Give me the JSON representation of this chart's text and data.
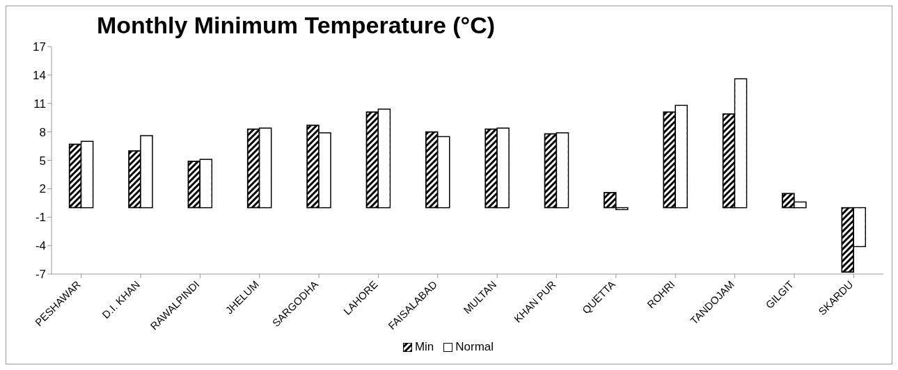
{
  "chart_data": {
    "type": "bar",
    "title": "Monthly Minimum Temperature (°C)",
    "categories": [
      "PESHAWAR",
      "D.I. KHAN",
      "RAWALPINDI",
      "JHELUM",
      "SARGODHA",
      "LAHORE",
      "FAISALABAD",
      "MULTAN",
      "KHAN PUR",
      "QUETTA",
      "ROHRI",
      "TANDOJAM",
      "GILGIT",
      "SKARDU"
    ],
    "series": [
      {
        "name": "Min",
        "color": "#000000",
        "values": [
          6.7,
          6.0,
          4.9,
          8.3,
          8.7,
          10.1,
          8.0,
          8.3,
          7.8,
          1.6,
          10.1,
          9.9,
          1.5,
          -6.8
        ]
      },
      {
        "name": "Normal",
        "color": "#ffffff",
        "values": [
          7.0,
          7.6,
          5.1,
          8.4,
          7.9,
          10.4,
          7.5,
          8.4,
          7.9,
          -0.2,
          10.8,
          13.6,
          0.6,
          -4.1
        ]
      }
    ],
    "ylim": [
      -7,
      17
    ],
    "yticks": [
      -7,
      -4,
      -1,
      2,
      5,
      8,
      11,
      14,
      17
    ],
    "grid": false,
    "legend": "bottom"
  }
}
